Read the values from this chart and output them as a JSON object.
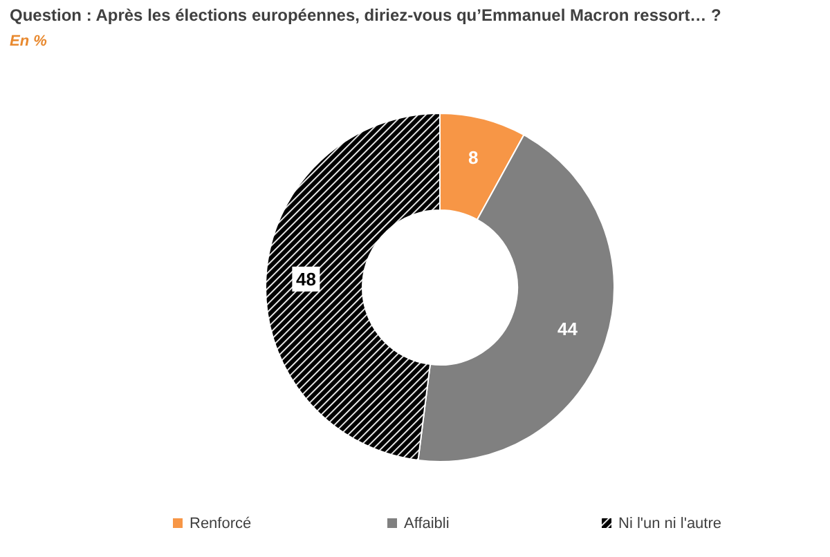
{
  "chart_data": {
    "type": "donut",
    "title": "Question : Après les élections européennes, diriez-vous qu’Emmanuel Macron ressort… ?",
    "subtitle": "En  %",
    "categories": [
      "Renforcé",
      "Affaibli",
      "Ni l'un ni l'autre"
    ],
    "values": [
      8,
      44,
      48
    ],
    "colors": [
      "#f79646",
      "#808080",
      "#000000"
    ],
    "data_labels": true,
    "legend": "bottom"
  }
}
